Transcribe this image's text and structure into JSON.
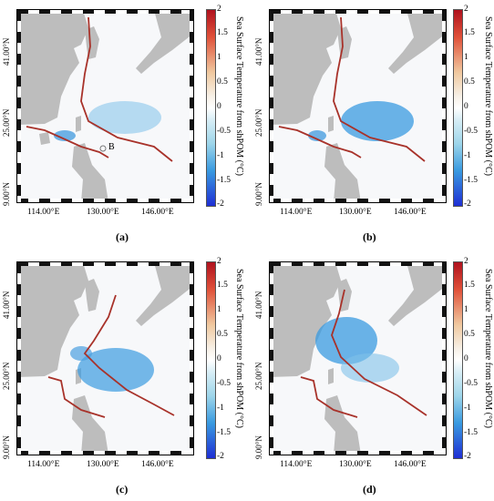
{
  "y_ticks": [
    "41.00°N",
    "25.00°N",
    "9.00°N"
  ],
  "x_ticks": [
    "114.00°E",
    "130.00°E",
    "146.00°E"
  ],
  "colorbar": {
    "title": "Sea Surface Temperature from shPOM (°C)",
    "ticks": [
      "2",
      "1.5",
      "1",
      "0.5",
      "0",
      "-0.5",
      "-1",
      "-1.5",
      "-2"
    ],
    "range": [
      -2,
      2
    ]
  },
  "panels": [
    {
      "caption": "(a)",
      "marker": "B"
    },
    {
      "caption": "(b)",
      "marker": ""
    },
    {
      "caption": "(c)",
      "marker": ""
    },
    {
      "caption": "(d)",
      "marker": ""
    }
  ],
  "colors": {
    "land": "#bdbdbd",
    "track": "#a8322a",
    "cool": "#4b9fe0"
  }
}
